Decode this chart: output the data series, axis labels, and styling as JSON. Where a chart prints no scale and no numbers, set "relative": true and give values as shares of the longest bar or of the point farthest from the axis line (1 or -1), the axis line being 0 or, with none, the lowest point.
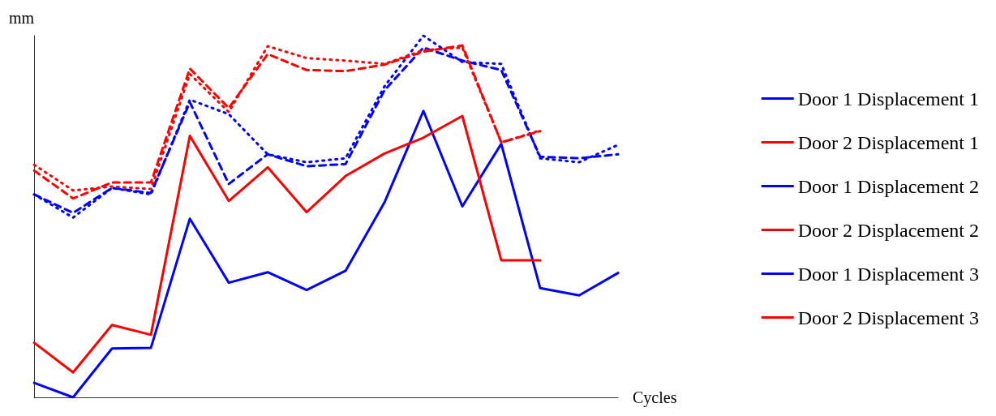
{
  "chart_data": {
    "type": "line",
    "relative": true,
    "xlabel": "Cycles",
    "ylabel": "mm",
    "legend": "right",
    "marker": "none",
    "grid": false,
    "categories": [
      null,
      null,
      null,
      null,
      null,
      null,
      null,
      null,
      null,
      null,
      null,
      null,
      null,
      null,
      null,
      null
    ],
    "series": [
      {
        "name": "Door 1 Displacement 1",
        "color": "#0000ff",
        "line_style": "solid",
        "values": [
          0.04,
          0,
          0.135,
          0.137,
          0.494,
          0.317,
          0.346,
          0.297,
          0.35,
          0.539,
          0.792,
          0.528,
          0.701,
          0.302,
          0.282,
          0.344
        ]
      },
      {
        "name": "Door 2 Displacement 1",
        "color": "#ff0000",
        "line_style": "solid",
        "values": [
          0.151,
          0.069,
          0.2,
          0.173,
          0.723,
          0.543,
          0.636,
          0.512,
          0.612,
          0.674,
          0.718,
          0.778,
          0.379,
          0.379,
          null,
          null
        ]
      },
      {
        "name": "Door 1 Displacement 2",
        "color": "#0000ff",
        "line_style": "dashed",
        "values": [
          0.561,
          0.51,
          0.579,
          0.565,
          0.816,
          0.59,
          0.672,
          0.639,
          0.645,
          0.849,
          0.967,
          0.931,
          0.905,
          0.665,
          0.661,
          0.672
        ]
      },
      {
        "name": "Door 2 Displacement 2",
        "color": "#ff0000",
        "line_style": "dashed",
        "values": [
          0.627,
          0.55,
          0.594,
          0.594,
          0.909,
          0.8,
          0.949,
          0.905,
          0.902,
          0.92,
          0.956,
          0.973,
          0.705,
          0.736,
          null,
          null
        ]
      },
      {
        "name": "Door 1 Displacement 3",
        "color": "#0000ff",
        "line_style": "dotted",
        "values": [
          0.561,
          0.497,
          0.579,
          0.561,
          0.823,
          0.783,
          0.672,
          0.65,
          0.661,
          0.86,
          1,
          0.927,
          0.922,
          0.661,
          0.65,
          0.698
        ]
      },
      {
        "name": "Door 2 Displacement 3",
        "color": "#ff0000",
        "line_style": "dotted",
        "values": [
          0.643,
          0.572,
          0.583,
          0.576,
          0.894,
          0.789,
          0.971,
          0.938,
          0.931,
          0.922,
          0.96,
          0.967,
          0.705,
          0.738,
          null,
          null
        ]
      }
    ]
  }
}
